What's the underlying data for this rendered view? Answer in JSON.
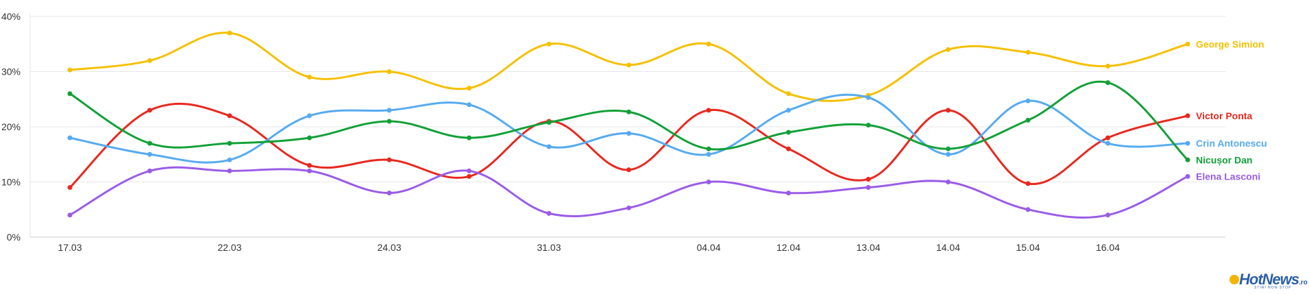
{
  "chart_data": {
    "type": "line",
    "title": "",
    "xlabel": "",
    "ylabel": "",
    "ylim": [
      0,
      40
    ],
    "y_ticks": [
      "0%",
      "10%",
      "20%",
      "30%",
      "40%"
    ],
    "grid": true,
    "legend": "end-labels-right",
    "x_labels": [
      "17.03",
      "22.03",
      "24.03",
      "31.03",
      "04.04",
      "12.04",
      "13.04",
      "14.04",
      "15.04",
      "16.04"
    ],
    "series": [
      {
        "name": "George Simion",
        "color": "#f5c000",
        "values": [
          30.3,
          32,
          37,
          29,
          30,
          27,
          35,
          31.2,
          35,
          26,
          25.7,
          34,
          33.5,
          31,
          35
        ]
      },
      {
        "name": "Victor Ponta",
        "color": "#e8281e",
        "values": [
          9,
          23,
          22,
          13,
          14,
          11,
          21,
          12.2,
          23,
          16,
          10.5,
          23,
          9.7,
          18,
          22
        ]
      },
      {
        "name": "Crin Antonescu",
        "color": "#56aaf0",
        "values": [
          18,
          15,
          14,
          22,
          23,
          24,
          16.4,
          18.8,
          15,
          23,
          25.3,
          15,
          24.7,
          17,
          17
        ]
      },
      {
        "name": "Nicușor Dan",
        "color": "#12a038",
        "values": [
          26,
          17,
          17,
          18,
          21,
          18,
          20.8,
          22.7,
          16,
          19,
          20.3,
          16,
          21.2,
          28,
          14
        ]
      },
      {
        "name": "Elena Lasconi",
        "color": "#9a5ce6",
        "values": [
          4,
          12,
          12,
          12,
          8,
          12,
          4.3,
          5.3,
          10,
          8,
          9,
          10,
          5,
          4,
          11
        ]
      }
    ]
  },
  "logo": {
    "name": "HotNews",
    "suffix": ".ro",
    "tagline": "STIRI NON-STOP"
  }
}
